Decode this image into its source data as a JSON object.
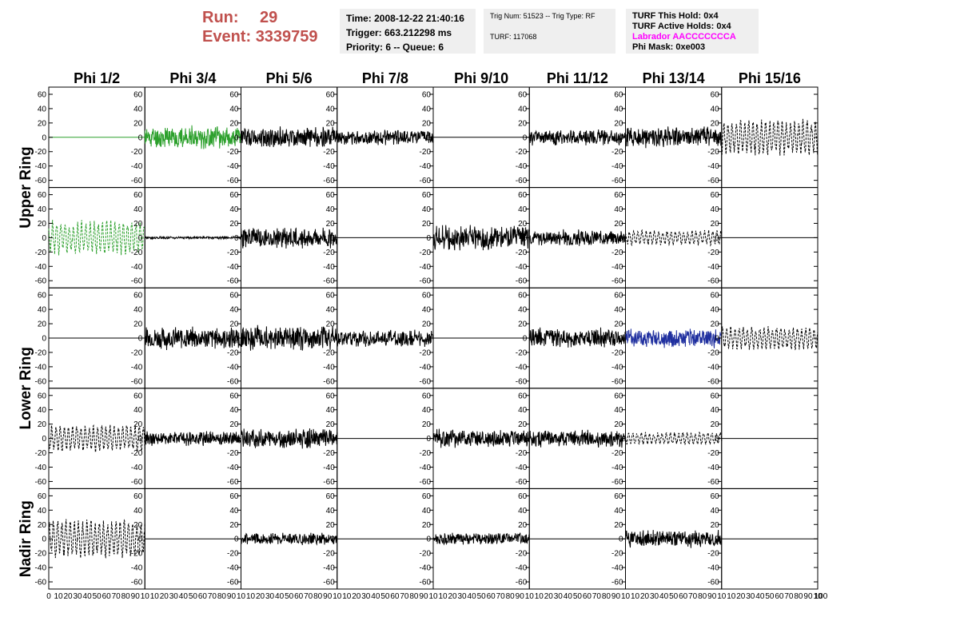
{
  "header": {
    "run_label": "Run:",
    "run_value": "29",
    "event_label": "Event:",
    "event_value": "3339759",
    "time": "Time: 2008-12-22 21:40:16",
    "trigger": "Trigger: 663.212298 ms",
    "priority": "Priority: 6 -- Queue: 6",
    "trig_num": "Trig Num: 51523 -- Trig Type: RF",
    "turf": "TURF: 117068",
    "turf_this_hold": "TURF This Hold: 0x4",
    "turf_active_holds": "TURF Active Holds: 0x4",
    "labrador": "Labrador AACCCCCCCA",
    "phi_mask": "Phi Mask: 0xe003"
  },
  "colors": {
    "run_text": "#c0504d",
    "labrador_text": "#ff00ff",
    "green_trace": "#2ca02c",
    "blue_trace": "#1f2f9f",
    "black_trace": "#000000",
    "info_bg": "#efefef"
  },
  "chart_data": {
    "type": "line",
    "columns": [
      "Phi 1/2",
      "Phi 3/4",
      "Phi 5/6",
      "Phi 7/8",
      "Phi 9/10",
      "Phi 11/12",
      "Phi 13/14",
      "Phi 15/16"
    ],
    "rows": [
      "Upper Ring",
      "Lower Ring",
      "Nadir Ring"
    ],
    "xlim": [
      0,
      100
    ],
    "ylim": [
      -70,
      70
    ],
    "x_ticks": [
      "10",
      "20",
      "30",
      "40",
      "50",
      "60",
      "70",
      "80",
      "90",
      "10"
    ],
    "x_ticks_first": "0",
    "x_ticks_last": "100",
    "y_ticks": [
      "60",
      "40",
      "20",
      "0",
      "-20",
      "-40",
      "-60"
    ],
    "panels": [
      [
        {
          "style": "flat",
          "color": "green"
        },
        {
          "style": "solid",
          "color": "green",
          "amp": 17,
          "seed": 11
        },
        {
          "style": "solid",
          "color": "black",
          "amp": 16,
          "seed": 12
        },
        {
          "style": "solid",
          "color": "black",
          "amp": 11,
          "seed": 13
        },
        {
          "style": "flat",
          "color": "black"
        },
        {
          "style": "solid",
          "color": "black",
          "amp": 12,
          "seed": 15
        },
        {
          "style": "solid",
          "color": "black",
          "amp": 16,
          "seed": 16
        },
        {
          "style": "dashed",
          "color": "black",
          "amp": 26,
          "seed": 17
        }
      ],
      [
        {
          "style": "dashed",
          "color": "green",
          "amp": 25,
          "seed": 21
        },
        {
          "style": "solid",
          "color": "black",
          "amp": 2,
          "seed": 22
        },
        {
          "style": "solid",
          "color": "black",
          "amp": 17,
          "seed": 23
        },
        {
          "style": "flat",
          "color": "black"
        },
        {
          "style": "solid",
          "color": "black",
          "amp": 19,
          "seed": 25
        },
        {
          "style": "solid",
          "color": "black",
          "amp": 12,
          "seed": 26
        },
        {
          "style": "dashed",
          "color": "black",
          "amp": 11,
          "seed": 27
        },
        {
          "style": "flat",
          "color": "black"
        }
      ],
      [
        {
          "style": "flat",
          "color": "black"
        },
        {
          "style": "solid",
          "color": "black",
          "amp": 17,
          "seed": 32
        },
        {
          "style": "solid",
          "color": "black",
          "amp": 19,
          "seed": 33
        },
        {
          "style": "solid",
          "color": "black",
          "amp": 13,
          "seed": 34
        },
        {
          "style": "flat",
          "color": "black"
        },
        {
          "style": "solid",
          "color": "black",
          "amp": 15,
          "seed": 36
        },
        {
          "style": "solid",
          "color": "blue",
          "amp": 15,
          "seed": 37
        },
        {
          "style": "dashed",
          "color": "black",
          "amp": 17,
          "seed": 38
        }
      ],
      [
        {
          "style": "dashed",
          "color": "black",
          "amp": 20,
          "seed": 41
        },
        {
          "style": "solid",
          "color": "black",
          "amp": 11,
          "seed": 42
        },
        {
          "style": "solid",
          "color": "black",
          "amp": 15,
          "seed": 43
        },
        {
          "style": "flat",
          "color": "black"
        },
        {
          "style": "solid",
          "color": "black",
          "amp": 14,
          "seed": 45
        },
        {
          "style": "solid",
          "color": "black",
          "amp": 13,
          "seed": 46
        },
        {
          "style": "dashed",
          "color": "black",
          "amp": 9,
          "seed": 47
        },
        {
          "style": "flat",
          "color": "black"
        }
      ],
      [
        {
          "style": "dashed",
          "color": "black",
          "amp": 28,
          "seed": 51
        },
        {
          "style": "flat",
          "color": "black"
        },
        {
          "style": "solid",
          "color": "black",
          "amp": 9,
          "seed": 53
        },
        {
          "style": "flat",
          "color": "black"
        },
        {
          "style": "solid",
          "color": "black",
          "amp": 9,
          "seed": 55
        },
        {
          "style": "flat",
          "color": "black"
        },
        {
          "style": "solid",
          "color": "black",
          "amp": 13,
          "seed": 57
        },
        {
          "style": "flat",
          "color": "black"
        }
      ]
    ]
  }
}
